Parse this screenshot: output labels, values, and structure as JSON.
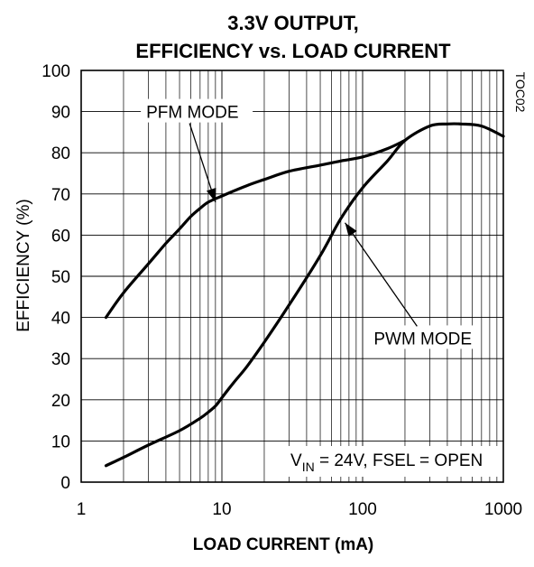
{
  "chart_data": {
    "type": "line",
    "title_lines": [
      "3.3V OUTPUT,",
      "EFFICIENCY vs. LOAD CURRENT"
    ],
    "xlabel": "LOAD CURRENT (mA)",
    "ylabel": "EFFICIENCY (%)",
    "xscale": "log",
    "xlim": [
      1,
      1000
    ],
    "ylim": [
      0,
      100
    ],
    "x_ticks": [
      1,
      10,
      100,
      1000
    ],
    "x_tick_labels": [
      "1",
      "10",
      "100",
      "1000"
    ],
    "y_ticks": [
      0,
      10,
      20,
      30,
      40,
      50,
      60,
      70,
      80,
      90,
      100
    ],
    "y_tick_labels": [
      "0",
      "10",
      "20",
      "30",
      "40",
      "50",
      "60",
      "70",
      "80",
      "90",
      "100"
    ],
    "grid": true,
    "figure_code": "TOC02",
    "series": [
      {
        "name": "PFM MODE",
        "x": [
          1.5,
          2,
          3,
          4,
          5,
          6,
          7,
          8,
          10,
          15,
          20,
          30,
          50,
          70,
          100,
          150,
          200
        ],
        "y": [
          40,
          46,
          53,
          58,
          61.5,
          64.5,
          66.5,
          68,
          69.5,
          72,
          73.5,
          75.5,
          77,
          78,
          79,
          81,
          83
        ]
      },
      {
        "name": "PWM MODE",
        "x": [
          1.5,
          2,
          3,
          5,
          7,
          8,
          9,
          10,
          12,
          15,
          20,
          30,
          50,
          70,
          100,
          150,
          200,
          300,
          400,
          500,
          700,
          1000
        ],
        "y": [
          4,
          6,
          9,
          12.5,
          15.5,
          17,
          18.5,
          20.5,
          24,
          28,
          34,
          43,
          55,
          64,
          71.5,
          78,
          83,
          86.5,
          87,
          87,
          86.5,
          84
        ]
      }
    ],
    "annotations": [
      {
        "text": "PFM MODE",
        "label_x": 2.9,
        "label_y": 90,
        "arrow_x": 9,
        "arrow_y": 68
      },
      {
        "text": "PWM MODE",
        "label_x": 120,
        "label_y": 35,
        "arrow_x": 75,
        "arrow_y": 63
      }
    ],
    "condition_box": {
      "prefix": "V",
      "subscript": "IN",
      "suffix": " = 24V, FSEL = OPEN"
    }
  }
}
